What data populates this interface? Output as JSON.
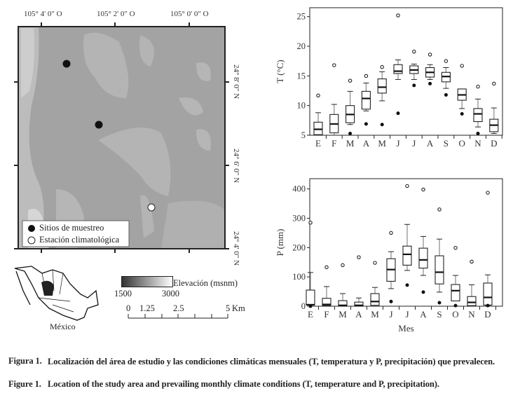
{
  "map": {
    "top_labels": [
      "105° 4' 0\" O",
      "105° 2' 0\" O",
      "105° 0' 0\" O"
    ],
    "right_labels": [
      "24° 8' 0\" N",
      "24° 6' 0\" N",
      "24° 4' 0\" N"
    ],
    "legend": {
      "sampling_sites": "Sitios de muestreo",
      "climate_station": "Estación climatológica"
    },
    "inset_label": "México",
    "elevation": {
      "title": "Elevación (msnm)",
      "min": "1500",
      "max": "3000"
    },
    "scale_bar": {
      "ticks": [
        "0",
        "1.25",
        "2.5",
        "5"
      ],
      "unit": "Km"
    }
  },
  "caption": {
    "es_label": "Figura 1.",
    "es_text": "Localización del área de estudio y las condiciones climáticas mensuales (T, temperatura y P, precipitación) que prevalecen.",
    "en_label": "Figure 1.",
    "en_text": "Location of the study area and prevailing monthly climate conditions (T, temperature and P, precipitation)."
  },
  "chart_data": [
    {
      "type": "boxplot",
      "ylabel": "T (°C)",
      "xlabel": "",
      "ylim": [
        5,
        26.5
      ],
      "yticks": [
        5,
        10,
        15,
        20,
        25
      ],
      "categories": [
        "E",
        "F",
        "M",
        "A",
        "M",
        "J",
        "J",
        "A",
        "S",
        "O",
        "N",
        "D"
      ],
      "boxes": [
        {
          "min": 5.0,
          "q1": 5.1,
          "median": 6.0,
          "q3": 7.2,
          "max": 8.8,
          "outliers_high": [
            11.7
          ],
          "outliers_low": []
        },
        {
          "min": 5.0,
          "q1": 5.4,
          "median": 6.9,
          "q3": 8.5,
          "max": 10.2,
          "outliers_high": [
            16.8
          ],
          "outliers_low": []
        },
        {
          "min": 6.8,
          "q1": 7.1,
          "median": 8.5,
          "q3": 10.0,
          "max": 12.4,
          "outliers_high": [
            14.2
          ],
          "outliers_low": [
            5.3
          ]
        },
        {
          "min": 9.1,
          "q1": 9.4,
          "median": 11.2,
          "q3": 12.4,
          "max": 13.8,
          "outliers_high": [
            15.0
          ],
          "outliers_low": [
            6.9
          ]
        },
        {
          "min": 10.8,
          "q1": 12.1,
          "median": 13.1,
          "q3": 14.5,
          "max": 15.7,
          "outliers_high": [
            16.5
          ],
          "outliers_low": [
            6.8
          ]
        },
        {
          "min": 14.4,
          "q1": 15.4,
          "median": 15.8,
          "q3": 16.9,
          "max": 17.7,
          "outliers_high": [
            25.2
          ],
          "outliers_low": [
            8.7
          ]
        },
        {
          "min": 14.4,
          "q1": 15.4,
          "median": 16.0,
          "q3": 16.7,
          "max": 17.0,
          "outliers_high": [
            19.1
          ],
          "outliers_low": [
            13.4
          ]
        },
        {
          "min": 14.4,
          "q1": 14.8,
          "median": 15.6,
          "q3": 16.4,
          "max": 16.9,
          "outliers_high": [
            18.6
          ],
          "outliers_low": [
            13.7
          ]
        },
        {
          "min": 12.9,
          "q1": 14.0,
          "median": 14.9,
          "q3": 15.6,
          "max": 16.4,
          "outliers_high": [
            17.5
          ],
          "outliers_low": [
            11.8
          ]
        },
        {
          "min": 9.5,
          "q1": 10.9,
          "median": 11.8,
          "q3": 12.8,
          "max": 12.8,
          "outliers_high": [
            16.7
          ],
          "outliers_low": [
            8.6
          ]
        },
        {
          "min": 6.4,
          "q1": 7.3,
          "median": 8.6,
          "q3": 9.5,
          "max": 11.1,
          "outliers_high": [
            13.2
          ],
          "outliers_low": [
            5.3
          ]
        },
        {
          "min": 5.3,
          "q1": 5.6,
          "median": 6.7,
          "q3": 7.7,
          "max": 9.6,
          "outliers_high": [
            13.7
          ],
          "outliers_low": []
        }
      ]
    },
    {
      "type": "boxplot",
      "ylabel": "P (mm)",
      "xlabel": "Mes",
      "ylim": [
        0,
        435
      ],
      "yticks": [
        0,
        100,
        200,
        300,
        400
      ],
      "categories": [
        "E",
        "F",
        "M",
        "A",
        "M",
        "J",
        "J",
        "A",
        "S",
        "O",
        "N",
        "D"
      ],
      "boxes": [
        {
          "min": 0,
          "q1": 5,
          "median": 5,
          "q3": 55,
          "max": 115,
          "outliers_high": [
            285
          ],
          "outliers_low": [
            0
          ]
        },
        {
          "min": 0,
          "q1": 2,
          "median": 6,
          "q3": 27,
          "max": 67,
          "outliers_high": [
            133
          ],
          "outliers_low": []
        },
        {
          "min": 0,
          "q1": 1,
          "median": 3,
          "q3": 19,
          "max": 43,
          "outliers_high": [
            140
          ],
          "outliers_low": []
        },
        {
          "min": 0,
          "q1": 1,
          "median": 3,
          "q3": 14,
          "max": 28,
          "outliers_high": [
            167
          ],
          "outliers_low": []
        },
        {
          "min": 0,
          "q1": 3,
          "median": 16,
          "q3": 43,
          "max": 64,
          "outliers_high": [
            148
          ],
          "outliers_low": []
        },
        {
          "min": 60,
          "q1": 85,
          "median": 125,
          "q3": 162,
          "max": 186,
          "outliers_high": [
            250
          ],
          "outliers_low": [
            16
          ]
        },
        {
          "min": 122,
          "q1": 140,
          "median": 177,
          "q3": 205,
          "max": 279,
          "outliers_high": [
            410
          ],
          "outliers_low": [
            72
          ]
        },
        {
          "min": 105,
          "q1": 130,
          "median": 158,
          "q3": 198,
          "max": 238,
          "outliers_high": [
            398
          ],
          "outliers_low": [
            48
          ]
        },
        {
          "min": 48,
          "q1": 76,
          "median": 116,
          "q3": 172,
          "max": 229,
          "outliers_high": [
            330
          ],
          "outliers_low": [
            12
          ]
        },
        {
          "min": 18,
          "q1": 18,
          "median": 53,
          "q3": 74,
          "max": 105,
          "outliers_high": [
            199
          ],
          "outliers_low": [
            2
          ]
        },
        {
          "min": 0,
          "q1": 2,
          "median": 13,
          "q3": 33,
          "max": 73,
          "outliers_high": [
            152
          ],
          "outliers_low": []
        },
        {
          "min": 3,
          "q1": 4,
          "median": 30,
          "q3": 79,
          "max": 107,
          "outliers_high": [
            387
          ],
          "outliers_low": [
            2
          ]
        }
      ]
    }
  ]
}
